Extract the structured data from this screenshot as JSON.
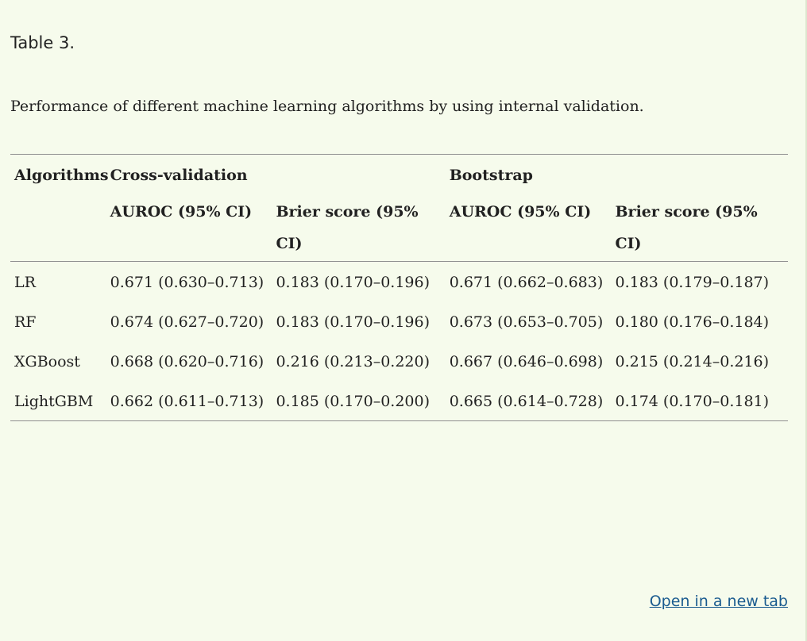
{
  "table_label": "Table 3.",
  "caption": "Performance of different machine learning algorithms by using internal validation.",
  "header": {
    "algorithms": "Algorithms",
    "cross_validation": "Cross-validation",
    "bootstrap": "Bootstrap",
    "cv_auroc": "AUROC (95% CI)",
    "cv_brier": "Brier score (95% CI)",
    "bs_auroc": "AUROC (95% CI)",
    "bs_brier": "Brier score (95% CI)"
  },
  "rows": [
    {
      "algorithm": "LR",
      "cv_auroc": "0.671 (0.630–0.713)",
      "cv_brier": "0.183 (0.170–0.196)",
      "bs_auroc": "0.671 (0.662–0.683)",
      "bs_brier": "0.183 (0.179–0.187)"
    },
    {
      "algorithm": "RF",
      "cv_auroc": "0.674 (0.627–0.720)",
      "cv_brier": "0.183 (0.170–0.196)",
      "bs_auroc": "0.673 (0.653–0.705)",
      "bs_brier": "0.180 (0.176–0.184)"
    },
    {
      "algorithm": "XGBoost",
      "cv_auroc": "0.668 (0.620–0.716)",
      "cv_brier": "0.216 (0.213–0.220)",
      "bs_auroc": "0.667 (0.646–0.698)",
      "bs_brier": "0.215 (0.214–0.216)"
    },
    {
      "algorithm": "LightGBM",
      "cv_auroc": "0.662 (0.611–0.713)",
      "cv_brier": "0.185 (0.170–0.200)",
      "bs_auroc": "0.665 (0.614–0.728)",
      "bs_brier": "0.174 (0.170–0.181)"
    }
  ],
  "open_link": "Open in a new tab"
}
